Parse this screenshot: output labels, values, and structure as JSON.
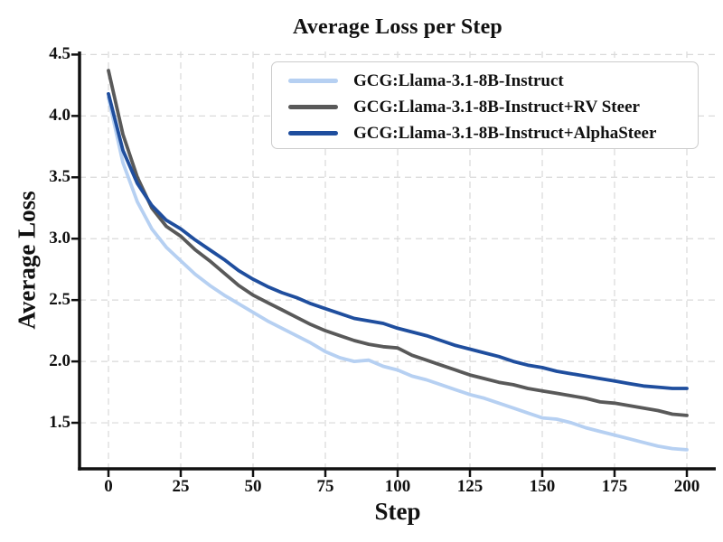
{
  "chart_data": {
    "type": "line",
    "title": "Average Loss per Step",
    "xlabel": "Step",
    "ylabel": "Average Loss",
    "x": [
      0,
      5,
      10,
      15,
      20,
      25,
      30,
      35,
      40,
      45,
      50,
      55,
      60,
      65,
      70,
      75,
      80,
      85,
      90,
      95,
      100,
      105,
      110,
      115,
      120,
      125,
      130,
      135,
      140,
      145,
      150,
      155,
      160,
      165,
      170,
      175,
      180,
      185,
      190,
      195,
      200
    ],
    "xticks": [
      0,
      25,
      50,
      75,
      100,
      125,
      150,
      175,
      200
    ],
    "yticks": [
      1.5,
      2.0,
      2.5,
      3.0,
      3.5,
      4.0,
      4.5
    ],
    "xlim": [
      -10,
      210
    ],
    "ylim": [
      1.125,
      4.525
    ],
    "grid": "dashed",
    "legend_position": "upper-right-inside",
    "axis_color": "#111111",
    "grid_color": "#d9d9d9",
    "series": [
      {
        "name": "GCG:Llama-3.1-8B-Instruct",
        "color": "#b6d0f2",
        "values": [
          4.15,
          3.62,
          3.3,
          3.08,
          2.93,
          2.82,
          2.71,
          2.62,
          2.54,
          2.47,
          2.4,
          2.33,
          2.27,
          2.21,
          2.15,
          2.08,
          2.03,
          2.0,
          2.01,
          1.96,
          1.93,
          1.88,
          1.85,
          1.81,
          1.77,
          1.73,
          1.7,
          1.66,
          1.62,
          1.58,
          1.54,
          1.53,
          1.5,
          1.46,
          1.43,
          1.4,
          1.37,
          1.34,
          1.31,
          1.29,
          1.28
        ]
      },
      {
        "name": "GCG:Llama-3.1-8B-Instruct+RV Steer",
        "color": "#595959",
        "values": [
          4.37,
          3.85,
          3.5,
          3.25,
          3.1,
          3.02,
          2.91,
          2.82,
          2.72,
          2.62,
          2.54,
          2.48,
          2.42,
          2.36,
          2.3,
          2.25,
          2.21,
          2.17,
          2.14,
          2.12,
          2.11,
          2.05,
          2.01,
          1.97,
          1.93,
          1.89,
          1.86,
          1.83,
          1.81,
          1.78,
          1.76,
          1.74,
          1.72,
          1.7,
          1.67,
          1.66,
          1.64,
          1.62,
          1.6,
          1.57,
          1.56
        ]
      },
      {
        "name": "GCG:Llama-3.1-8B-Instruct+AlphaSteer",
        "color": "#1f4e9e",
        "values": [
          4.18,
          3.72,
          3.45,
          3.27,
          3.15,
          3.08,
          2.99,
          2.91,
          2.83,
          2.74,
          2.67,
          2.61,
          2.56,
          2.52,
          2.47,
          2.43,
          2.39,
          2.35,
          2.33,
          2.31,
          2.27,
          2.24,
          2.21,
          2.17,
          2.13,
          2.1,
          2.07,
          2.04,
          2.0,
          1.97,
          1.95,
          1.92,
          1.9,
          1.88,
          1.86,
          1.84,
          1.82,
          1.8,
          1.79,
          1.78,
          1.78
        ]
      }
    ]
  }
}
